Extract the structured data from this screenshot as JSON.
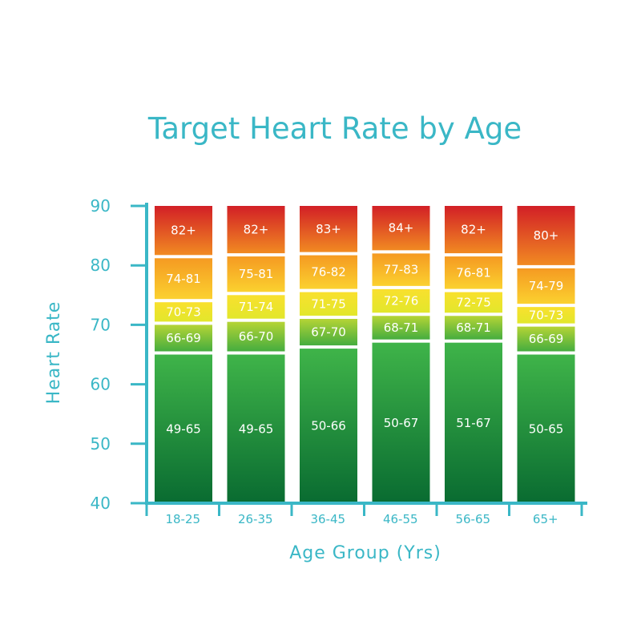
{
  "chart_data": {
    "type": "bar",
    "title": "Target Heart Rate by Age",
    "xlabel": "Age Group (Yrs)",
    "ylabel": "Heart Rate",
    "ylim": [
      40,
      90
    ],
    "yticks": [
      40,
      50,
      60,
      70,
      80,
      90
    ],
    "categories": [
      "18-25",
      "26-35",
      "36-45",
      "46-55",
      "56-65",
      "65+"
    ],
    "zones": [
      {
        "colors": [
          "#096b31",
          "#3fb449"
        ],
        "segments": [
          {
            "from": 40,
            "to": 65,
            "label": "49-65"
          },
          {
            "from": 40,
            "to": 65,
            "label": "49-65"
          },
          {
            "from": 40,
            "to": 66,
            "label": "50-66"
          },
          {
            "from": 40,
            "to": 67,
            "label": "50-67"
          },
          {
            "from": 40,
            "to": 67,
            "label": "51-67"
          },
          {
            "from": 40,
            "to": 65,
            "label": "50-65"
          }
        ]
      },
      {
        "colors": [
          "#45ad3f",
          "#b5d435"
        ],
        "segments": [
          {
            "from": 65,
            "to": 70,
            "label": "66-69"
          },
          {
            "from": 65,
            "to": 70.5,
            "label": "66-70"
          },
          {
            "from": 66,
            "to": 71,
            "label": "67-70"
          },
          {
            "from": 67,
            "to": 71.5,
            "label": "68-71"
          },
          {
            "from": 67,
            "to": 71.5,
            "label": "68-71"
          },
          {
            "from": 65,
            "to": 69.7,
            "label": "66-69"
          }
        ]
      },
      {
        "colors": [
          "#e2e72b",
          "#f9e02e"
        ],
        "segments": [
          {
            "from": 70,
            "to": 73.8,
            "label": "70-73"
          },
          {
            "from": 70.5,
            "to": 75,
            "label": "71-74"
          },
          {
            "from": 71,
            "to": 75.5,
            "label": "71-75"
          },
          {
            "from": 71.5,
            "to": 76,
            "label": "72-76"
          },
          {
            "from": 71.5,
            "to": 75.5,
            "label": "72-75"
          },
          {
            "from": 69.7,
            "to": 73,
            "label": "70-73"
          }
        ]
      },
      {
        "colors": [
          "#fbd12f",
          "#f59a22"
        ],
        "segments": [
          {
            "from": 73.8,
            "to": 81.2,
            "label": "74-81"
          },
          {
            "from": 75,
            "to": 81.5,
            "label": "75-81"
          },
          {
            "from": 75.5,
            "to": 81.7,
            "label": "76-82"
          },
          {
            "from": 76,
            "to": 82,
            "label": "77-83"
          },
          {
            "from": 75.5,
            "to": 81.5,
            "label": "76-81"
          },
          {
            "from": 73,
            "to": 79.5,
            "label": "74-79"
          }
        ]
      },
      {
        "colors": [
          "#f18a22",
          "#d21f26"
        ],
        "segments": [
          {
            "from": 81.2,
            "to": 90,
            "label": "82+"
          },
          {
            "from": 81.5,
            "to": 90,
            "label": "82+"
          },
          {
            "from": 81.7,
            "to": 90,
            "label": "83+"
          },
          {
            "from": 82,
            "to": 90,
            "label": "84+"
          },
          {
            "from": 81.5,
            "to": 90,
            "label": "82+"
          },
          {
            "from": 79.5,
            "to": 90,
            "label": "80+"
          }
        ]
      }
    ],
    "colors": {
      "axis": "#3ab7c6",
      "segment_text": "#ffffff",
      "background": "#ffffff"
    }
  }
}
